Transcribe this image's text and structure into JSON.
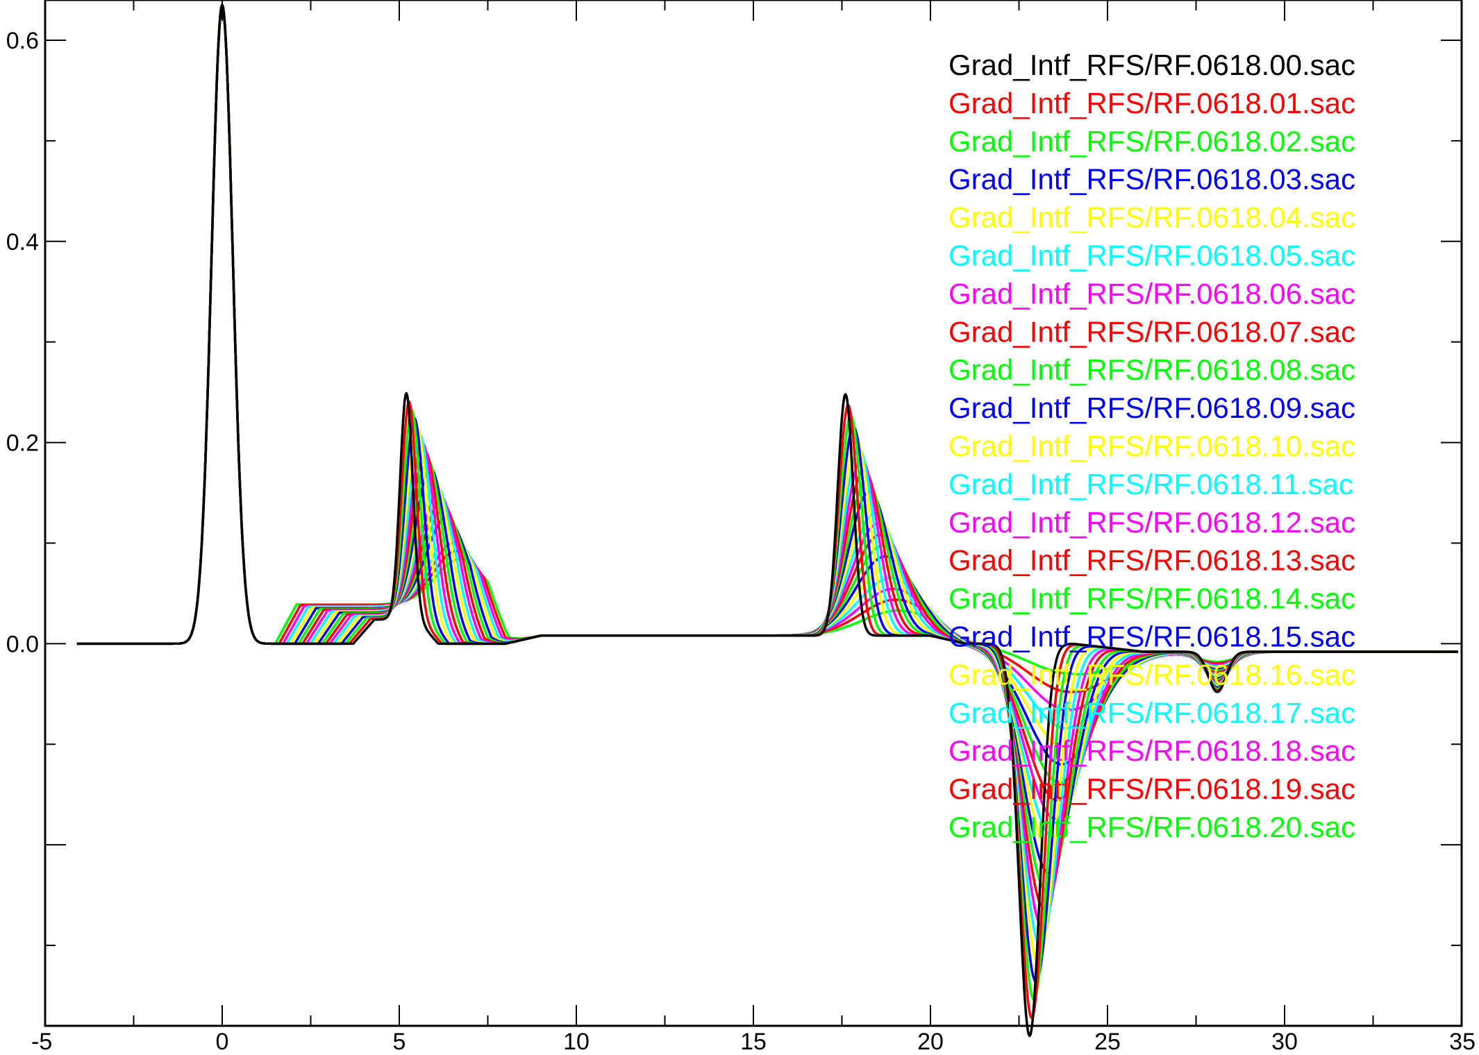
{
  "chart_data": {
    "type": "line",
    "title": "",
    "xlabel": "",
    "ylabel": "",
    "xlim": [
      -5,
      35
    ],
    "ylim": [
      -0.38,
      0.64
    ],
    "x_ticks": [
      -5,
      0,
      5,
      10,
      15,
      20,
      25,
      30,
      35
    ],
    "x_tick_labels": [
      "-5",
      "0",
      "5",
      "10",
      "15",
      "20",
      "25",
      "30",
      "35"
    ],
    "y_ticks": [
      0.0,
      0.2,
      0.4,
      0.6
    ],
    "y_tick_labels": [
      "0.0",
      "0.2",
      "0.4",
      "0.6"
    ],
    "grid": false,
    "legend_position": "top-right",
    "series": [
      {
        "name": "Grad_Intf_RFS/RF.0618.00.sac",
        "color": "#000000"
      },
      {
        "name": "Grad_Intf_RFS/RF.0618.01.sac",
        "color": "#ff0000"
      },
      {
        "name": "Grad_Intf_RFS/RF.0618.02.sac",
        "color": "#00ff00"
      },
      {
        "name": "Grad_Intf_RFS/RF.0618.03.sac",
        "color": "#0000ff"
      },
      {
        "name": "Grad_Intf_RFS/RF.0618.04.sac",
        "color": "#ffff00"
      },
      {
        "name": "Grad_Intf_RFS/RF.0618.05.sac",
        "color": "#00ffff"
      },
      {
        "name": "Grad_Intf_RFS/RF.0618.06.sac",
        "color": "#ff00ff"
      },
      {
        "name": "Grad_Intf_RFS/RF.0618.07.sac",
        "color": "#ff0000"
      },
      {
        "name": "Grad_Intf_RFS/RF.0618.08.sac",
        "color": "#00ff00"
      },
      {
        "name": "Grad_Intf_RFS/RF.0618.09.sac",
        "color": "#0000ff"
      },
      {
        "name": "Grad_Intf_RFS/RF.0618.10.sac",
        "color": "#ffff00"
      },
      {
        "name": "Grad_Intf_RFS/RF.0618.11.sac",
        "color": "#00ffff"
      },
      {
        "name": "Grad_Intf_RFS/RF.0618.12.sac",
        "color": "#ff00ff"
      },
      {
        "name": "Grad_Intf_RFS/RF.0618.13.sac",
        "color": "#ff0000"
      },
      {
        "name": "Grad_Intf_RFS/RF.0618.14.sac",
        "color": "#00ff00"
      },
      {
        "name": "Grad_Intf_RFS/RF.0618.15.sac",
        "color": "#0000ff"
      },
      {
        "name": "Grad_Intf_RFS/RF.0618.16.sac",
        "color": "#ffff00"
      },
      {
        "name": "Grad_Intf_RFS/RF.0618.17.sac",
        "color": "#00ffff"
      },
      {
        "name": "Grad_Intf_RFS/RF.0618.18.sac",
        "color": "#ff00ff"
      },
      {
        "name": "Grad_Intf_RFS/RF.0618.19.sac",
        "color": "#ff0000"
      },
      {
        "name": "Grad_Intf_RFS/RF.0618.20.sac",
        "color": "#00ff00"
      }
    ]
  }
}
